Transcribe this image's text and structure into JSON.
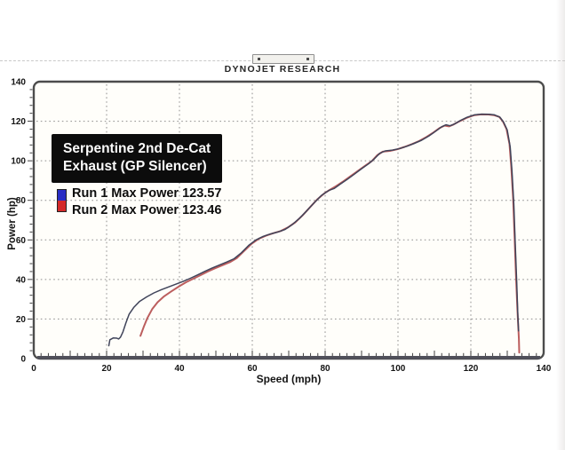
{
  "header": {
    "title": "DYNOJET RESEARCH"
  },
  "callout": {
    "line1": "Serpentine 2nd De-Cat",
    "line2": "Exhaust (GP Silencer)"
  },
  "chart_data": {
    "type": "line",
    "title": "DYNOJET RESEARCH",
    "xlabel": "Speed (mph)",
    "ylabel": "Power (hp)",
    "xlim": [
      0,
      140
    ],
    "ylim": [
      0,
      140
    ],
    "x_ticks": [
      0,
      20,
      40,
      60,
      80,
      100,
      120,
      140
    ],
    "y_ticks": [
      0,
      20,
      40,
      60,
      80,
      100,
      120,
      140
    ],
    "grid": "dotted gridlines every 20 units, frame border with rounded corners",
    "legend_position": "upper-left inside plot",
    "frame_color": "#4c4c4c",
    "grid_color": "#8f8f8f",
    "series": [
      {
        "name": "Run 1",
        "max_power": 123.57,
        "label": "Run 1 Max Power 123.57",
        "color": "#2a2ec4",
        "line_color": "#40445a",
        "points": [
          [
            20.6,
            6.5
          ],
          [
            20.9,
            9.5
          ],
          [
            21.8,
            10.4
          ],
          [
            22.8,
            10.3
          ],
          [
            23.3,
            9.9
          ],
          [
            23.8,
            10.8
          ],
          [
            24.5,
            13.5
          ],
          [
            25.3,
            18
          ],
          [
            26.2,
            22.5
          ],
          [
            27.5,
            26
          ],
          [
            29,
            28.8
          ],
          [
            31,
            31.2
          ],
          [
            33,
            33.2
          ],
          [
            35,
            34.8
          ],
          [
            37,
            36.2
          ],
          [
            39,
            37.6
          ],
          [
            41,
            39
          ],
          [
            43,
            40.6
          ],
          [
            45,
            42.3
          ],
          [
            47,
            44.1
          ],
          [
            49,
            45.8
          ],
          [
            51,
            47.3
          ],
          [
            53,
            48.8
          ],
          [
            55,
            50.5
          ],
          [
            57,
            53.5
          ],
          [
            59,
            57.2
          ],
          [
            61,
            60
          ],
          [
            63,
            61.8
          ],
          [
            65,
            63
          ],
          [
            67,
            64
          ],
          [
            69,
            65.3
          ],
          [
            71,
            67.8
          ],
          [
            73,
            71
          ],
          [
            75,
            74.8
          ],
          [
            77,
            78.8
          ],
          [
            79,
            82.5
          ],
          [
            81,
            85
          ],
          [
            82.5,
            86
          ],
          [
            84,
            88
          ],
          [
            86,
            90.5
          ],
          [
            88,
            93.2
          ],
          [
            90,
            96
          ],
          [
            92,
            98.6
          ],
          [
            93.5,
            101
          ],
          [
            95,
            103.8
          ],
          [
            96.5,
            105
          ],
          [
            98.5,
            105.4
          ],
          [
            100.5,
            106.2
          ],
          [
            102.5,
            107.4
          ],
          [
            104.5,
            108.8
          ],
          [
            106.5,
            110.4
          ],
          [
            108.5,
            112.6
          ],
          [
            110.5,
            115.2
          ],
          [
            112,
            117.2
          ],
          [
            113.2,
            118.2
          ],
          [
            114.3,
            117.7
          ],
          [
            115.5,
            118.6
          ],
          [
            117,
            120.2
          ],
          [
            119,
            122
          ],
          [
            121,
            123.2
          ],
          [
            123,
            123.57
          ],
          [
            125,
            123.5
          ],
          [
            126.5,
            123.2
          ],
          [
            128,
            122
          ],
          [
            129,
            119.5
          ],
          [
            130,
            115.5
          ],
          [
            130.8,
            107
          ],
          [
            131.3,
            95
          ],
          [
            131.8,
            78
          ],
          [
            132.2,
            58
          ],
          [
            132.6,
            38
          ],
          [
            132.9,
            22
          ],
          [
            133.1,
            14
          ]
        ]
      },
      {
        "name": "Run 2",
        "max_power": 123.46,
        "label": "Run 2 Max Power 123.46",
        "color": "#d42a2a",
        "line_color": "#bc5e5e",
        "points": [
          [
            29.3,
            11.5
          ],
          [
            30.2,
            16
          ],
          [
            31.2,
            20.5
          ],
          [
            32.5,
            25
          ],
          [
            34,
            28.5
          ],
          [
            35.8,
            31.5
          ],
          [
            37.8,
            34
          ],
          [
            39.8,
            36.4
          ],
          [
            41.8,
            38.6
          ],
          [
            43.8,
            40.4
          ],
          [
            45.8,
            42.2
          ],
          [
            47.8,
            44
          ],
          [
            49.8,
            45.7
          ],
          [
            51.8,
            47.2
          ],
          [
            53.8,
            48.7
          ],
          [
            55.8,
            50.9
          ],
          [
            57.8,
            54.5
          ],
          [
            59.8,
            58
          ],
          [
            61.8,
            60.6
          ],
          [
            63.8,
            62.2
          ],
          [
            65.8,
            63.4
          ],
          [
            67.8,
            64.5
          ],
          [
            69.8,
            66.3
          ],
          [
            71.8,
            68.9
          ],
          [
            73.8,
            72.4
          ],
          [
            75.8,
            76.4
          ],
          [
            77.8,
            80.4
          ],
          [
            79.8,
            83.6
          ],
          [
            81.3,
            85.3
          ],
          [
            83,
            87.2
          ],
          [
            85,
            89.6
          ],
          [
            87,
            92.2
          ],
          [
            89,
            94.9
          ],
          [
            91,
            97.5
          ],
          [
            92.8,
            99.8
          ],
          [
            94.3,
            102.8
          ],
          [
            95.8,
            104.6
          ],
          [
            97.8,
            105
          ],
          [
            99.8,
            105.8
          ],
          [
            101.8,
            107
          ],
          [
            103.8,
            108.4
          ],
          [
            105.8,
            110
          ],
          [
            107.8,
            112
          ],
          [
            109.8,
            114.4
          ],
          [
            111.5,
            116.6
          ],
          [
            112.8,
            117.8
          ],
          [
            114,
            117.4
          ],
          [
            115.2,
            118.3
          ],
          [
            116.8,
            119.9
          ],
          [
            118.8,
            121.7
          ],
          [
            120.8,
            123
          ],
          [
            122.8,
            123.46
          ],
          [
            124.8,
            123.4
          ],
          [
            126.3,
            123.1
          ],
          [
            127.8,
            122.2
          ],
          [
            128.8,
            119.9
          ],
          [
            129.8,
            116
          ],
          [
            130.6,
            108.5
          ],
          [
            131.1,
            97
          ],
          [
            131.6,
            81
          ],
          [
            132,
            62
          ],
          [
            132.4,
            42
          ],
          [
            132.8,
            24
          ],
          [
            133.2,
            10
          ],
          [
            133.3,
            3
          ]
        ]
      }
    ]
  }
}
